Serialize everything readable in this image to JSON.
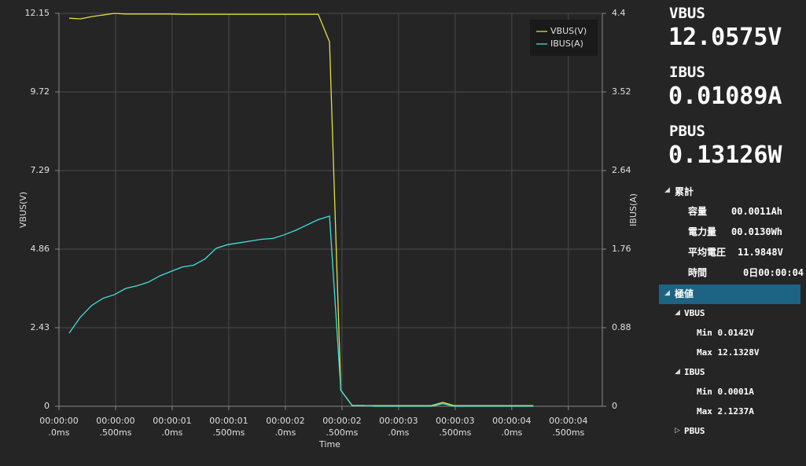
{
  "chart_data": {
    "type": "line",
    "x_label": "Time",
    "y_label": "VBUS(V)",
    "y2_label": "IBUS(A)",
    "x": [
      0.09,
      0.19,
      0.29,
      0.39,
      0.49,
      0.59,
      0.69,
      0.79,
      0.89,
      0.99,
      1.09,
      1.19,
      1.29,
      1.39,
      1.49,
      1.59,
      1.69,
      1.79,
      1.89,
      1.99,
      2.09,
      2.19,
      2.29,
      2.39,
      2.49,
      2.59,
      2.69,
      2.79,
      2.89,
      2.99,
      3.09,
      3.19,
      3.29,
      3.39,
      3.49,
      3.59,
      3.69,
      3.79,
      3.89,
      3.99,
      4.09,
      4.19
    ],
    "series": [
      {
        "name": "VBUS(V)",
        "color": "#e0e040",
        "values": [
          12.0,
          11.98,
          12.05,
          12.1,
          12.15,
          12.13,
          12.13,
          12.13,
          12.13,
          12.13,
          12.12,
          12.12,
          12.12,
          12.12,
          12.12,
          12.12,
          12.12,
          12.12,
          12.12,
          12.12,
          12.12,
          12.12,
          12.12,
          11.27,
          0.49,
          0.02,
          0.02,
          0.02,
          0.02,
          0.02,
          0.02,
          0.02,
          0.02,
          0.12,
          0.02,
          0.02,
          0.02,
          0.02,
          0.02,
          0.02,
          0.02,
          0.02
        ]
      },
      {
        "name": "IBUS(A)",
        "color": "#40e0d8",
        "axis": "y2",
        "values": [
          0.82,
          1.0,
          1.13,
          1.21,
          1.25,
          1.32,
          1.35,
          1.39,
          1.46,
          1.51,
          1.56,
          1.58,
          1.65,
          1.77,
          1.81,
          1.83,
          1.85,
          1.87,
          1.88,
          1.92,
          1.97,
          2.03,
          2.09,
          2.13,
          0.18,
          0.01,
          0.01,
          0.0,
          0.0,
          0.0,
          0.0,
          0.0,
          0.0,
          0.03,
          0.0,
          0.0,
          0.0,
          0.0,
          0.0,
          0.0,
          0.0,
          0.0
        ]
      }
    ],
    "xlim": [
      0,
      4.8
    ],
    "xticks": [
      {
        "value": 0,
        "label": [
          "00:00:00",
          ".0ms"
        ]
      },
      {
        "value": 0.5,
        "label": [
          "00:00:00",
          ".500ms"
        ]
      },
      {
        "value": 1,
        "label": [
          "00:00:01",
          ".0ms"
        ]
      },
      {
        "value": 1.5,
        "label": [
          "00:00:01",
          ".500ms"
        ]
      },
      {
        "value": 2,
        "label": [
          "00:00:02",
          ".0ms"
        ]
      },
      {
        "value": 2.5,
        "label": [
          "00:00:02",
          ".500ms"
        ]
      },
      {
        "value": 3,
        "label": [
          "00:00:03",
          ".0ms"
        ]
      },
      {
        "value": 3.5,
        "label": [
          "00:00:03",
          ".500ms"
        ]
      },
      {
        "value": 4,
        "label": [
          "00:00:04",
          ".0ms"
        ]
      },
      {
        "value": 4.5,
        "label": [
          "00:00:04",
          ".500ms"
        ]
      }
    ],
    "ylim": [
      0,
      12.15
    ],
    "yticks": [
      0,
      2.43,
      4.86,
      7.29,
      9.72,
      12.15
    ],
    "y2lim": [
      0,
      4.4
    ],
    "y2ticks": [
      0,
      0.88,
      1.76,
      2.64,
      3.52,
      4.4
    ],
    "grid": true,
    "legend": "top-right"
  },
  "panel": {
    "readings": [
      {
        "label": "VBUS",
        "value": "12.0575V"
      },
      {
        "label": "IBUS",
        "value": "0.01089A"
      },
      {
        "label": "PBUS",
        "value": "0.13126W"
      }
    ],
    "cumulative": {
      "title": "累計",
      "items": [
        {
          "label": "容量",
          "value": "00.0011Ah"
        },
        {
          "label": "電力量",
          "value": "00.0130Wh"
        },
        {
          "label": "平均電圧",
          "value": "11.9848V"
        },
        {
          "label": "時間",
          "value": "0日00:00:04"
        }
      ]
    },
    "extremes": {
      "title": "極値",
      "groups": [
        {
          "title": "VBUS",
          "items": [
            "Min 0.0142V",
            "Max 12.1328V"
          ]
        },
        {
          "title": "IBUS",
          "items": [
            "Min 0.0001A",
            "Max 2.1237A"
          ]
        },
        {
          "title": "PBUS"
        }
      ]
    }
  }
}
